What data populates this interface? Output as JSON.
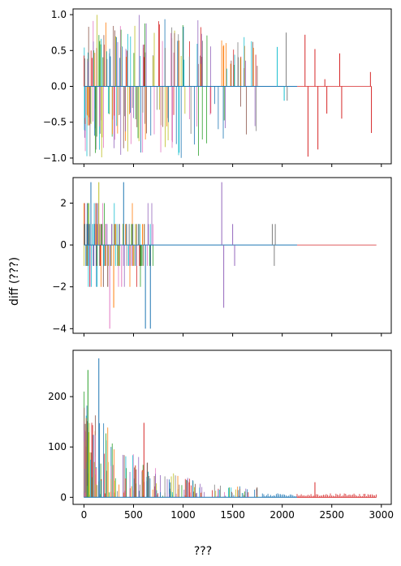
{
  "figure": {
    "ylabel": "diff (???)",
    "xlabel": "???"
  },
  "chart_data": [
    {
      "type": "line",
      "xlim": [
        -110,
        3100
      ],
      "ylim": [
        -1.08,
        1.08
      ],
      "x_ticks": [
        0,
        500,
        1000,
        1500,
        2000,
        2500,
        3000
      ],
      "y_ticks": [
        -1.0,
        -0.5,
        0.0,
        0.5,
        1.0
      ],
      "y_tick_labels": [
        "−1.0",
        "−0.5",
        "0.0",
        "0.5",
        "1.0"
      ],
      "grid": false,
      "spikes": [
        {
          "x": 2230,
          "y": 0.72,
          "series": 3
        },
        {
          "x": 2260,
          "y": -0.98,
          "series": 3
        },
        {
          "x": 2330,
          "y": 0.52,
          "series": 3
        },
        {
          "x": 2360,
          "y": -0.88,
          "series": 3
        },
        {
          "x": 2430,
          "y": 0.1,
          "series": 3
        },
        {
          "x": 2450,
          "y": -0.38,
          "series": 3
        },
        {
          "x": 2580,
          "y": 0.46,
          "series": 3
        },
        {
          "x": 2600,
          "y": -0.45,
          "series": 3
        },
        {
          "x": 2890,
          "y": 0.2,
          "series": 3
        },
        {
          "x": 2900,
          "y": -0.65,
          "series": 3
        },
        {
          "x": 2040,
          "y": 0.75,
          "series": 7
        },
        {
          "x": 2050,
          "y": -0.2,
          "series": 7
        },
        {
          "x": 1950,
          "y": 0.55,
          "series": 9
        },
        {
          "x": 2020,
          "y": -0.2,
          "series": 9
        }
      ]
    },
    {
      "type": "line",
      "xlim": [
        -110,
        3100
      ],
      "ylim": [
        -4.22,
        3.22
      ],
      "y_ticks": [
        -4,
        -2,
        0,
        2
      ],
      "y_tick_labels": [
        "−4",
        "−2",
        "0",
        "2"
      ],
      "grid": false,
      "spikes": [
        {
          "x": 20,
          "y": -1,
          "series": 0
        },
        {
          "x": 35,
          "y": 1,
          "series": 0
        },
        {
          "x": 70,
          "y": 3,
          "series": 0
        },
        {
          "x": 95,
          "y": -1,
          "series": 0
        },
        {
          "x": 120,
          "y": 1,
          "series": 1
        },
        {
          "x": 150,
          "y": 3,
          "series": 8
        },
        {
          "x": 165,
          "y": -1,
          "series": 3
        },
        {
          "x": 180,
          "y": 1,
          "series": 2
        },
        {
          "x": 200,
          "y": -1,
          "series": 9
        },
        {
          "x": 220,
          "y": 1,
          "series": 6
        },
        {
          "x": 240,
          "y": -2,
          "series": 5
        },
        {
          "x": 260,
          "y": -4,
          "series": 6
        },
        {
          "x": 280,
          "y": 1,
          "series": 4
        },
        {
          "x": 300,
          "y": -3,
          "series": 1
        },
        {
          "x": 320,
          "y": 1,
          "series": 8
        },
        {
          "x": 340,
          "y": -1,
          "series": 2
        },
        {
          "x": 360,
          "y": 1,
          "series": 4
        },
        {
          "x": 380,
          "y": -2,
          "series": 6
        },
        {
          "x": 400,
          "y": 3,
          "series": 0
        },
        {
          "x": 420,
          "y": 1,
          "series": 1
        },
        {
          "x": 450,
          "y": -1,
          "series": 9
        },
        {
          "x": 480,
          "y": 1,
          "series": 2
        },
        {
          "x": 520,
          "y": 1,
          "series": 8
        },
        {
          "x": 560,
          "y": -1,
          "series": 3
        },
        {
          "x": 590,
          "y": 1,
          "series": 1
        },
        {
          "x": 620,
          "y": -4,
          "series": 0
        },
        {
          "x": 650,
          "y": 1,
          "series": 4
        },
        {
          "x": 670,
          "y": -4,
          "series": 0
        },
        {
          "x": 1390,
          "y": 3,
          "series": 4
        },
        {
          "x": 1410,
          "y": -3,
          "series": 4
        },
        {
          "x": 1500,
          "y": 1,
          "series": 4
        },
        {
          "x": 1520,
          "y": -1,
          "series": 4
        },
        {
          "x": 1900,
          "y": 1,
          "series": 7
        },
        {
          "x": 1920,
          "y": -1,
          "series": 7
        },
        {
          "x": 1930,
          "y": 1,
          "series": 7
        }
      ]
    },
    {
      "type": "line",
      "xlim": [
        -110,
        3100
      ],
      "ylim": [
        -14,
        292
      ],
      "y_ticks": [
        0,
        100,
        200
      ],
      "y_tick_labels": [
        "0",
        "100",
        "200"
      ],
      "grid": false,
      "spikes": [
        {
          "x": 150,
          "y": 276,
          "series": 0
        },
        {
          "x": 40,
          "y": 253,
          "series": 2
        },
        {
          "x": 605,
          "y": 148,
          "series": 3
        },
        {
          "x": 2330,
          "y": 30,
          "series": 3
        }
      ]
    }
  ],
  "colors": [
    "#1f77b4",
    "#ff7f0e",
    "#2ca02c",
    "#d62728",
    "#9467bd",
    "#8c564b",
    "#e377c2",
    "#7f7f7f",
    "#bcbd22",
    "#17becf"
  ]
}
